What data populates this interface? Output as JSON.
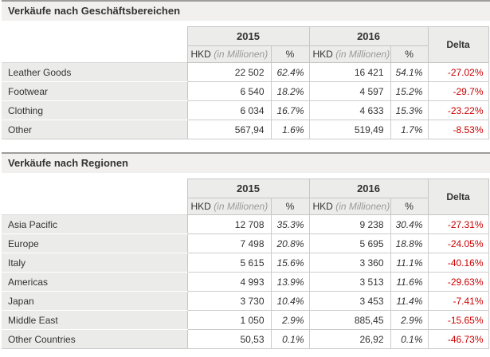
{
  "colors": {
    "delta_negative": "#cc0000",
    "title_bar_bg": "#f1f0ee",
    "header_cell_bg": "#ececea",
    "label_cell_bg": "#ebebe9",
    "grid_border": "#cccccc"
  },
  "tables": [
    {
      "title": "Verkäufe nach Geschäftsbereichen",
      "header": {
        "col2015": "2015",
        "col2016": "2016",
        "delta": "Delta",
        "hkd": "HKD",
        "hkd_note": "(in Millionen)",
        "pct": "%"
      },
      "rows": [
        {
          "label": "Leather Goods",
          "hkd_2015": "22 502",
          "pct_2015": "62.4%",
          "hkd_2016": "16 421",
          "pct_2016": "54.1%",
          "delta": "-27.02%"
        },
        {
          "label": "Footwear",
          "hkd_2015": "6 540",
          "pct_2015": "18.2%",
          "hkd_2016": "4 597",
          "pct_2016": "15.2%",
          "delta": "-29.7%"
        },
        {
          "label": "Clothing",
          "hkd_2015": "6 034",
          "pct_2015": "16.7%",
          "hkd_2016": "4 633",
          "pct_2016": "15.3%",
          "delta": "-23.22%"
        },
        {
          "label": "Other",
          "hkd_2015": "567,94",
          "pct_2015": "1.6%",
          "hkd_2016": "519,49",
          "pct_2016": "1.7%",
          "delta": "-8.53%"
        }
      ]
    },
    {
      "title": "Verkäufe nach Regionen",
      "header": {
        "col2015": "2015",
        "col2016": "2016",
        "delta": "Delta",
        "hkd": "HKD",
        "hkd_note": "(in Millionen)",
        "pct": "%"
      },
      "rows": [
        {
          "label": "Asia Pacific",
          "hkd_2015": "12 708",
          "pct_2015": "35.3%",
          "hkd_2016": "9 238",
          "pct_2016": "30.4%",
          "delta": "-27.31%"
        },
        {
          "label": "Europe",
          "hkd_2015": "7 498",
          "pct_2015": "20.8%",
          "hkd_2016": "5 695",
          "pct_2016": "18.8%",
          "delta": "-24.05%"
        },
        {
          "label": "Italy",
          "hkd_2015": "5 615",
          "pct_2015": "15.6%",
          "hkd_2016": "3 360",
          "pct_2016": "11.1%",
          "delta": "-40.16%"
        },
        {
          "label": "Americas",
          "hkd_2015": "4 993",
          "pct_2015": "13.9%",
          "hkd_2016": "3 513",
          "pct_2016": "11.6%",
          "delta": "-29.63%"
        },
        {
          "label": "Japan",
          "hkd_2015": "3 730",
          "pct_2015": "10.4%",
          "hkd_2016": "3 453",
          "pct_2016": "11.4%",
          "delta": "-7.41%"
        },
        {
          "label": "Middle East",
          "hkd_2015": "1 050",
          "pct_2015": "2.9%",
          "hkd_2016": "885,45",
          "pct_2016": "2.9%",
          "delta": "-15.65%"
        },
        {
          "label": "Other Countries",
          "hkd_2015": "50,53",
          "pct_2015": "0.1%",
          "hkd_2016": "26,92",
          "pct_2016": "0.1%",
          "delta": "-46.73%"
        }
      ]
    }
  ]
}
